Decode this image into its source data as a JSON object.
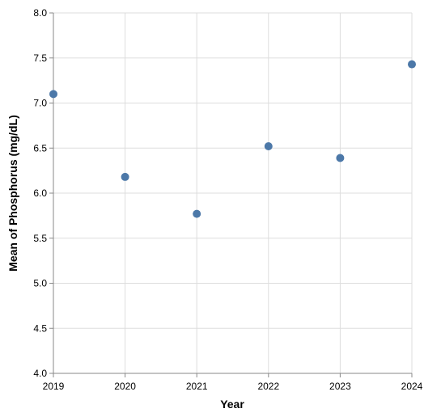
{
  "chart_data": {
    "type": "scatter",
    "x_label": "Year",
    "y_label": "Mean of Phosphorus (mg/dL)",
    "x": [
      2019,
      2020,
      2021,
      2022,
      2023,
      2024
    ],
    "values": [
      7.1,
      6.18,
      5.77,
      6.52,
      6.39,
      7.43
    ],
    "color": "#4c78a8",
    "xlim": [
      2019,
      2024
    ],
    "xticks": [
      2019,
      2020,
      2021,
      2022,
      2023,
      2024
    ],
    "ylim": [
      4,
      8
    ],
    "yticks": [
      {
        "value": 4,
        "label": "4.0"
      },
      4.5,
      {
        "value": 5,
        "label": "5.0"
      },
      5.5,
      {
        "value": 6,
        "label": "6.0"
      },
      6.5,
      {
        "value": 7,
        "label": "7.0"
      },
      7.5,
      {
        "value": 8,
        "label": "8.0"
      }
    ],
    "grid": true
  }
}
